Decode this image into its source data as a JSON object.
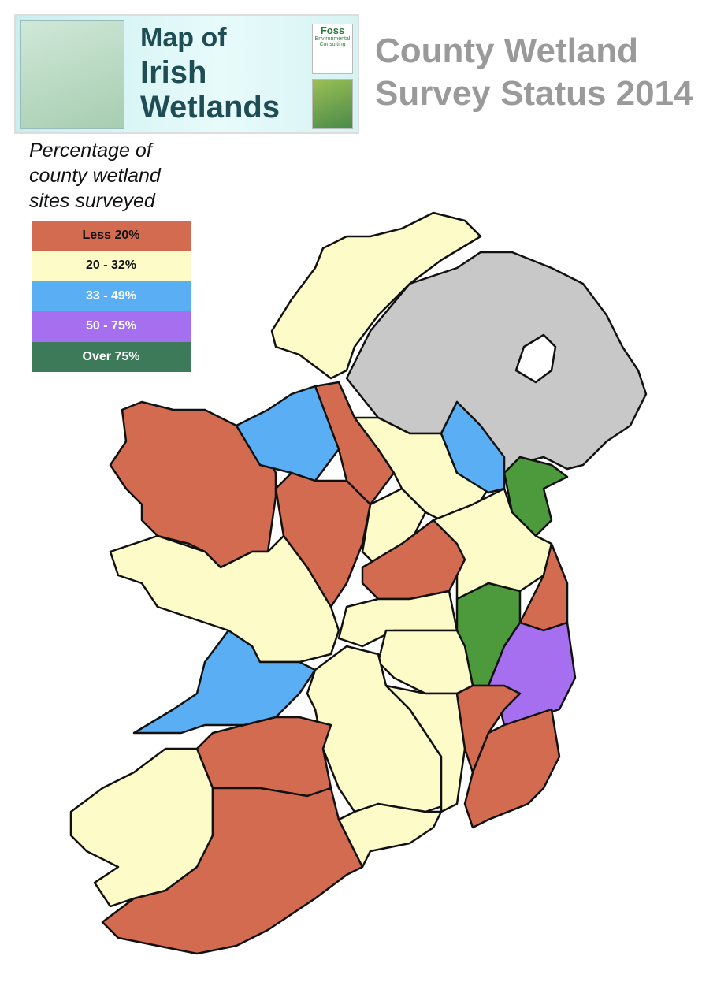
{
  "header": {
    "title_lines": [
      "Map of",
      "Irish",
      "Wetlands"
    ],
    "logo": "Foss",
    "logo_subtitle": "Environmental Consulting"
  },
  "title_lines": [
    "County Wetland",
    "Survey Status 2014"
  ],
  "legend": {
    "title_lines": [
      "Percentage of",
      "county wetland",
      "sites surveyed"
    ],
    "items": [
      {
        "label": "Less 20%",
        "color": "#d36b50"
      },
      {
        "label": "20 - 32%",
        "color": "#fdfbc8"
      },
      {
        "label": "33 - 49%",
        "color": "#5aaef4"
      },
      {
        "label": "50 - 75%",
        "color": "#a66ff0"
      },
      {
        "label": "Over 75%",
        "color": "#3d7a5a"
      }
    ]
  }
}
